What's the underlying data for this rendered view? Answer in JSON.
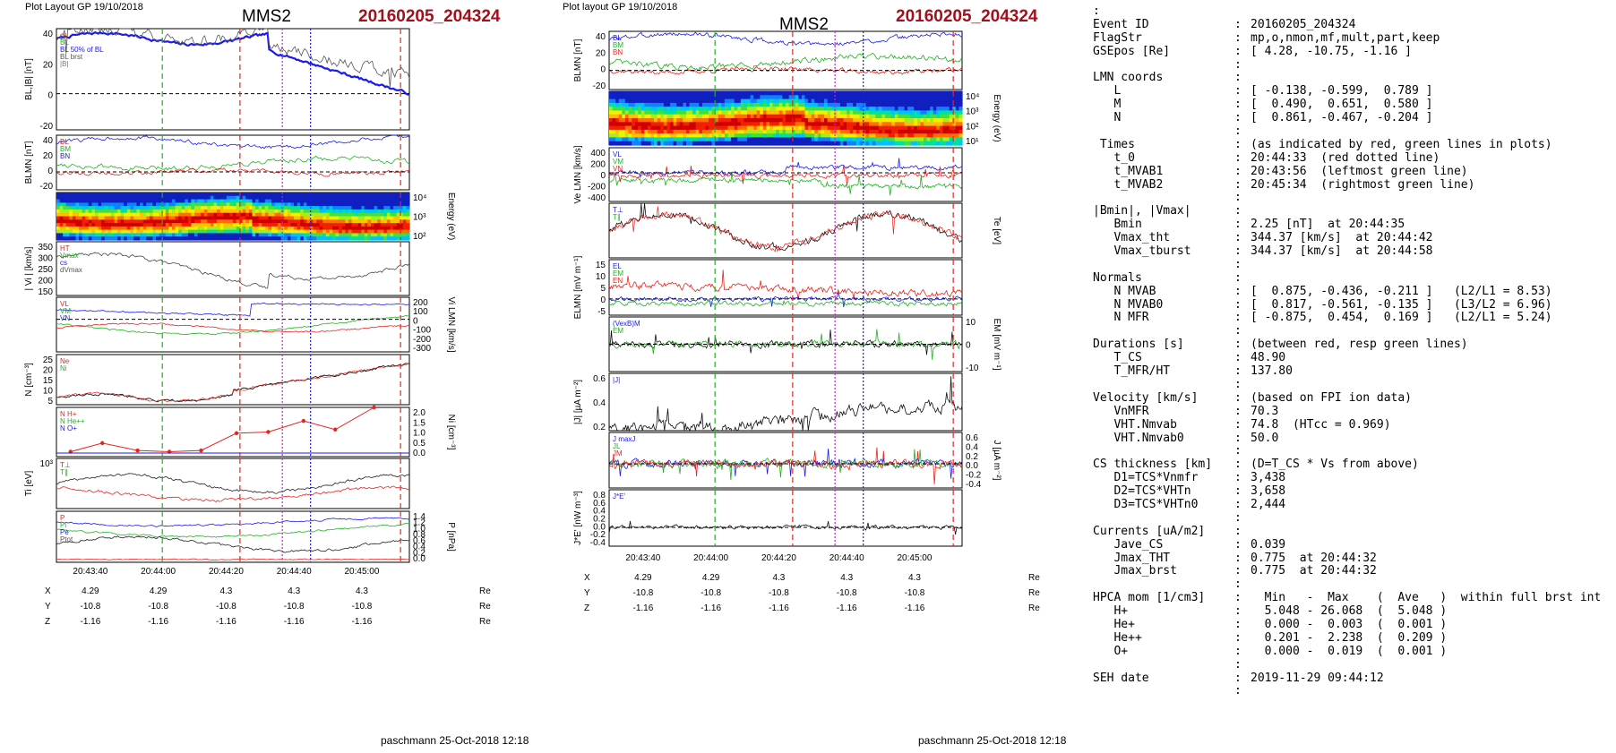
{
  "left_page": {
    "header": "Plot Layout GP 19/10/2018",
    "title": "MMS2",
    "event": "20160205_204324",
    "footer": "paschmann 25-Oct-2018 12:18"
  },
  "right_page": {
    "header": "Plot layout GP 19/10/2018",
    "title": "MMS2",
    "event": "20160205_204324",
    "footer": "paschmann 25-Oct-2018 12:18"
  },
  "colors": {
    "red_line": "#e8231e",
    "green_line": "#22b022",
    "blue_line": "#1a1aee",
    "magenta_line": "#cc22cc",
    "black_line": "#111111",
    "title_red": "#a30f1a"
  },
  "chart_data": [
    {
      "id": "left-stack",
      "type": "line",
      "time_ticks": [
        "20:43:40",
        "20:44:00",
        "20:44:20",
        "20:44:40",
        "20:45:00"
      ],
      "orbit": {
        "rows": [
          {
            "label": "X",
            "values": [
              "4.29",
              "4.29",
              "4.3",
              "4.3",
              "4.3"
            ],
            "unit": "Re"
          },
          {
            "label": "Y",
            "values": [
              "-10.8",
              "-10.8",
              "-10.8",
              "-10.8",
              "-10.8"
            ],
            "unit": "Re"
          },
          {
            "label": "Z",
            "values": [
              "-1.16",
              "-1.16",
              "-1.16",
              "-1.16",
              "-1.16"
            ],
            "unit": "Re"
          }
        ]
      },
      "panels": [
        {
          "ylabel": "BL,|B| [nT]",
          "ylim": [
            -25,
            45
          ],
          "ticks": [
            "40",
            "20",
            "0",
            "-20"
          ],
          "legend": [
            "cs",
            "BL",
            "BL 50% of BL",
            "BL brst",
            "|B|"
          ]
        },
        {
          "ylabel": "BLMN [nT]",
          "ylim": [
            -22,
            45
          ],
          "ticks": [
            "40",
            "20",
            "0",
            "-20"
          ],
          "legend": [
            "BL",
            "BM",
            "BN"
          ]
        },
        {
          "ylabel": "Energy (eV)",
          "ticks": [
            "10⁴",
            "10³",
            "10²"
          ],
          "kind": "spectrogram"
        },
        {
          "ylabel": "| Vi | [km/s]",
          "ylim": [
            130,
            350
          ],
          "ticks": [
            "350",
            "300",
            "250",
            "200",
            "150"
          ],
          "legend": [
            "HT",
            "Vmax",
            "cs",
            "dVmax"
          ]
        },
        {
          "ylabel": "Vi LMN [km/s]",
          "ylim": [
            -310,
            210
          ],
          "ticks": [
            "200",
            "100",
            "0",
            "-100",
            "-200",
            "-300"
          ],
          "legend": [
            "VL",
            "VM",
            "VN"
          ]
        },
        {
          "ylabel": "N [cm⁻³]",
          "ylim": [
            2,
            30
          ],
          "ticks": [
            "25",
            "20",
            "15",
            "10",
            "5"
          ],
          "legend": [
            "Ne",
            "Ni"
          ]
        },
        {
          "ylabel": "Ni [cm⁻³]",
          "ylim": [
            0,
            2.0
          ],
          "ticks": [
            "2.0",
            "1.5",
            "1.0",
            "0.5",
            "0.0"
          ],
          "legend": [
            "N H+",
            "N He++",
            "N O+"
          ],
          "he_pp_points": [
            [
              0.04,
              0.2
            ],
            [
              0.13,
              0.55
            ],
            [
              0.23,
              0.25
            ],
            [
              0.32,
              0.2
            ],
            [
              0.41,
              0.25
            ],
            [
              0.51,
              0.95
            ],
            [
              0.6,
              1.0
            ],
            [
              0.7,
              1.45
            ],
            [
              0.79,
              1.1
            ],
            [
              0.9,
              2.1
            ]
          ]
        },
        {
          "ylabel": "Ti [eV]",
          "ticks": [
            "10³"
          ],
          "legend": [
            "T⊥",
            "T∥"
          ]
        },
        {
          "ylabel": "P [nPa]",
          "ylim": [
            0,
            1.4
          ],
          "ticks": [
            "1.4",
            "1.2",
            "1.0",
            "0.8",
            "0.6",
            "0.4",
            "0.2",
            "0.0"
          ],
          "legend": [
            "P",
            "Pi",
            "Pe",
            "Ptot"
          ]
        }
      ]
    },
    {
      "id": "right-stack",
      "type": "line",
      "time_ticks": [
        "20:43:40",
        "20:44:00",
        "20:44:20",
        "20:44:40",
        "20:45:00"
      ],
      "orbit": {
        "rows": [
          {
            "label": "X",
            "values": [
              "4.29",
              "4.29",
              "4.3",
              "4.3",
              "4.3"
            ],
            "unit": "Re"
          },
          {
            "label": "Y",
            "values": [
              "-10.8",
              "-10.8",
              "-10.8",
              "-10.8",
              "-10.8"
            ],
            "unit": "Re"
          },
          {
            "label": "Z",
            "values": [
              "-1.16",
              "-1.16",
              "-1.16",
              "-1.16",
              "-1.16"
            ],
            "unit": "Re"
          }
        ]
      },
      "panels": [
        {
          "ylabel": "BLMN [nT]",
          "ylim": [
            -22,
            45
          ],
          "ticks": [
            "40",
            "20",
            "0",
            "-20"
          ],
          "legend": [
            "BL",
            "BM",
            "BN"
          ]
        },
        {
          "ylabel": "Energy (eV)",
          "ticks": [
            "10⁴",
            "10³",
            "10²",
            "10¹"
          ],
          "kind": "spectrogram"
        },
        {
          "ylabel": "Ve LMN [km/s]",
          "ylim": [
            -480,
            420
          ],
          "ticks": [
            "400",
            "200",
            "0",
            "-200",
            "-400"
          ],
          "legend": [
            "VL",
            "VM",
            "VN"
          ]
        },
        {
          "ylabel": "Te [eV]",
          "ticks": [],
          "legend": [
            "T⊥",
            "T∥"
          ]
        },
        {
          "ylabel": "ELMN [mV m⁻¹]",
          "ylim": [
            -7,
            17
          ],
          "ticks": [
            "15",
            "10",
            "5",
            "0",
            "-5"
          ],
          "legend": [
            "EL",
            "EM",
            "EN"
          ]
        },
        {
          "ylabel": "EM [mV m⁻¹]",
          "ylim": [
            -15,
            15
          ],
          "ticks": [
            "10",
            "0",
            "-10"
          ],
          "legend": [
            "(VexB)M",
            "EM"
          ]
        },
        {
          "ylabel": "|J| [µA m⁻²]",
          "ylim": [
            0,
            0.7
          ],
          "ticks": [
            "0.6",
            "0.4",
            "0.2"
          ],
          "legend": [
            "|J|"
          ]
        },
        {
          "ylabel": "J [µA m⁻²]",
          "ylim": [
            -0.5,
            0.65
          ],
          "ticks": [
            "0.6",
            "0.4",
            "0.2",
            "0.0",
            "-0.2",
            "-0.4"
          ],
          "legend": [
            "J maxJ",
            "JL",
            "JM"
          ]
        },
        {
          "ylabel": "J*E' [nW m⁻³]",
          "ylim": [
            -0.45,
            0.9
          ],
          "ticks": [
            "0.8",
            "0.6",
            "0.4",
            "0.2",
            "0.0",
            "-0.2",
            "-0.4"
          ],
          "legend": [
            "J*E'"
          ]
        }
      ]
    }
  ],
  "info_panel": {
    "lines": [
      {
        "k": ":",
        "v": "",
        "sep": false
      },
      {
        "k": "Event ID",
        "v": "20160205_204324"
      },
      {
        "k": "FlagStr",
        "v": "mp,o,nmon,mf,mult,part,keep"
      },
      {
        "k": "GSEpos [Re]",
        "v": "[ 4.28, -10.75, -1.16 ]"
      },
      {
        "k": "",
        "v": ""
      },
      {
        "k": "LMN coords",
        "v": ""
      },
      {
        "k": "   L",
        "v": "[ -0.138, -0.599,  0.789 ]"
      },
      {
        "k": "   M",
        "v": "[  0.490,  0.651,  0.580 ]"
      },
      {
        "k": "   N",
        "v": "[  0.861, -0.467, -0.204 ]"
      },
      {
        "k": "",
        "v": ""
      },
      {
        "k": " Times",
        "v": "(as indicated by red, green lines in plots)"
      },
      {
        "k": "   t_0",
        "v": "20:44:33  (red dotted line)"
      },
      {
        "k": "   t_MVAB1",
        "v": "20:43:56  (leftmost green line)"
      },
      {
        "k": "   t_MVAB2",
        "v": "20:45:34  (rightmost green line)"
      },
      {
        "k": "",
        "v": ""
      },
      {
        "k": "|Bmin|, |Vmax|",
        "v": ""
      },
      {
        "k": "   Bmin",
        "v": "2.25 [nT]  at 20:44:35"
      },
      {
        "k": "   Vmax_tht",
        "v": "344.37 [km/s]  at 20:44:42"
      },
      {
        "k": "   Vmax_tburst",
        "v": "344.37 [km/s]  at 20:44:58"
      },
      {
        "k": "",
        "v": ""
      },
      {
        "k": "Normals",
        "v": ""
      },
      {
        "k": "   N MVAB",
        "v": "[  0.875, -0.436, -0.211 ]   (L2/L1 = 8.53)"
      },
      {
        "k": "   N MVAB0",
        "v": "[  0.817, -0.561, -0.135 ]   (L3/L2 = 6.96)"
      },
      {
        "k": "   N MFR",
        "v": "[ -0.875,  0.454,  0.169 ]   (L2/L1 = 5.24)"
      },
      {
        "k": "",
        "v": ""
      },
      {
        "k": "Durations [s]",
        "v": "(between red, resp green lines)"
      },
      {
        "k": "   T_CS",
        "v": "48.90"
      },
      {
        "k": "   T_MFR/HT",
        "v": "137.80"
      },
      {
        "k": "",
        "v": ""
      },
      {
        "k": "Velocity [km/s]",
        "v": "(based on FPI ion data)"
      },
      {
        "k": "   VnMFR",
        "v": "70.3"
      },
      {
        "k": "   VHT.Nmvab",
        "v": "74.8  (HTcc = 0.969)"
      },
      {
        "k": "   VHT.Nmvab0",
        "v": "50.0"
      },
      {
        "k": "",
        "v": ""
      },
      {
        "k": "CS thickness [km]",
        "v": "(D=T_CS * Vs from above)"
      },
      {
        "k": "   D1=TCS*Vnmfr",
        "v": "3,438"
      },
      {
        "k": "   D2=TCS*VHTn",
        "v": "3,658"
      },
      {
        "k": "   D3=TCS*VHTn0",
        "v": "2,444"
      },
      {
        "k": "",
        "v": ""
      },
      {
        "k": "Currents [uA/m2]",
        "v": ""
      },
      {
        "k": "   Jave_CS",
        "v": "0.039"
      },
      {
        "k": "   Jmax_THT",
        "v": "0.775  at 20:44:32"
      },
      {
        "k": "   Jmax_brst",
        "v": "0.775  at 20:44:32"
      },
      {
        "k": "",
        "v": ""
      },
      {
        "k": "HPCA mom [1/cm3]",
        "v": "  Min   -  Max    (  Ave   )  within full brst int"
      },
      {
        "k": "   H+",
        "v": "  5.048 - 26.068  (  5.048 )"
      },
      {
        "k": "   He+",
        "v": "  0.000 -  0.003  (  0.001 )"
      },
      {
        "k": "   He++",
        "v": "  0.201 -  2.238  (  0.209 )"
      },
      {
        "k": "   O+",
        "v": "  0.000 -  0.019  (  0.001 )"
      },
      {
        "k": "",
        "v": ""
      },
      {
        "k": "SEH date",
        "v": "2019-11-29 09:44:12"
      },
      {
        "k": "",
        "v": ""
      }
    ]
  }
}
